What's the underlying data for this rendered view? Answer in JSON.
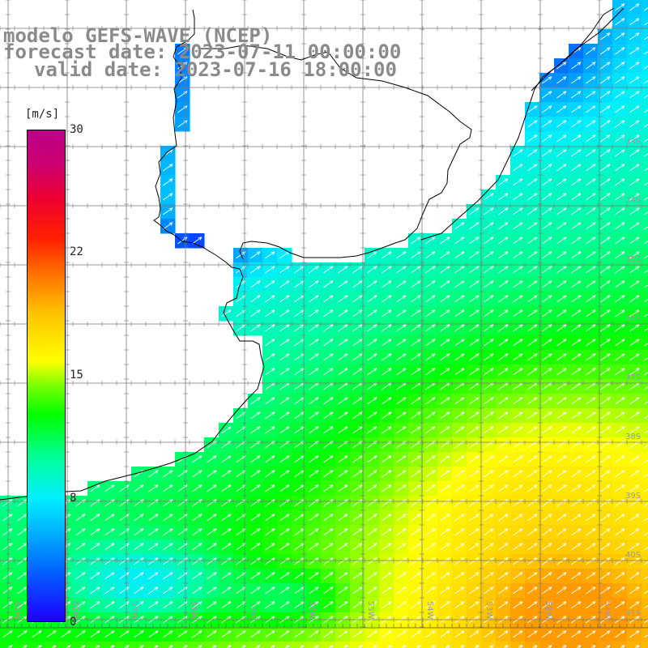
{
  "title": {
    "line1": "modelo GEFS-WAVE (NCEP)",
    "line2": "forecast date: 2023-07-11 00:00:00",
    "line3": "valid date: 2023-07-16 18:00:00"
  },
  "colorbar": {
    "units": "[m/s]",
    "min": 0,
    "max": 30,
    "ticks": [
      "30",
      "22",
      "15",
      "8",
      "0"
    ],
    "tick_values": [
      30,
      22,
      15,
      8,
      0
    ]
  },
  "map": {
    "lat_labels": [
      "33S",
      "34S",
      "35S",
      "36S",
      "37S",
      "38S",
      "39S",
      "40S",
      "41S"
    ],
    "lon_labels": [
      "61W",
      "60W",
      "59W",
      "58W",
      "57W",
      "56W",
      "55W",
      "54W",
      "53W",
      "52W",
      "51W"
    ],
    "colors": {
      "land": "#ffffff",
      "grid": "#7a7a7a",
      "coast": "#000000",
      "arrows": "#ffffff"
    }
  }
}
